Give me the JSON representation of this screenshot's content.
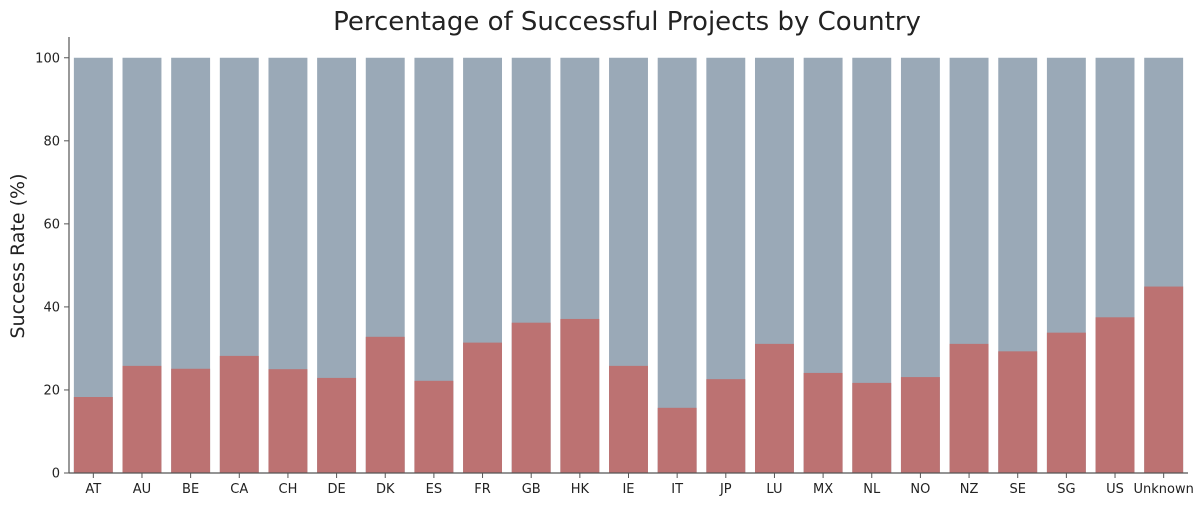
{
  "chart_data": {
    "type": "bar",
    "title": "Percentage of Successful Projects by Country",
    "xlabel": "",
    "ylabel": "Success Rate (%)",
    "ylim": [
      0,
      105
    ],
    "yticks": [
      0,
      20,
      40,
      60,
      80,
      100
    ],
    "grid": false,
    "legend": "none",
    "categories": [
      "AT",
      "AU",
      "BE",
      "CA",
      "CH",
      "DE",
      "DK",
      "ES",
      "FR",
      "GB",
      "HK",
      "IE",
      "IT",
      "JP",
      "LU",
      "MX",
      "NL",
      "NO",
      "NZ",
      "SE",
      "SG",
      "US",
      "Unknown"
    ],
    "series": [
      {
        "role": "total",
        "color": "#9aa9b7",
        "values": [
          100,
          100,
          100,
          100,
          100,
          100,
          100,
          100,
          100,
          100,
          100,
          100,
          100,
          100,
          100,
          100,
          100,
          100,
          100,
          100,
          100,
          100,
          100
        ]
      },
      {
        "role": "successful",
        "color": "#bc7272",
        "values": [
          18.3,
          25.8,
          25.1,
          28.2,
          25.0,
          22.9,
          32.8,
          22.2,
          31.4,
          36.2,
          37.1,
          25.8,
          15.7,
          22.6,
          31.1,
          24.1,
          21.7,
          23.1,
          31.1,
          29.3,
          33.8,
          37.5,
          44.9
        ]
      }
    ]
  }
}
